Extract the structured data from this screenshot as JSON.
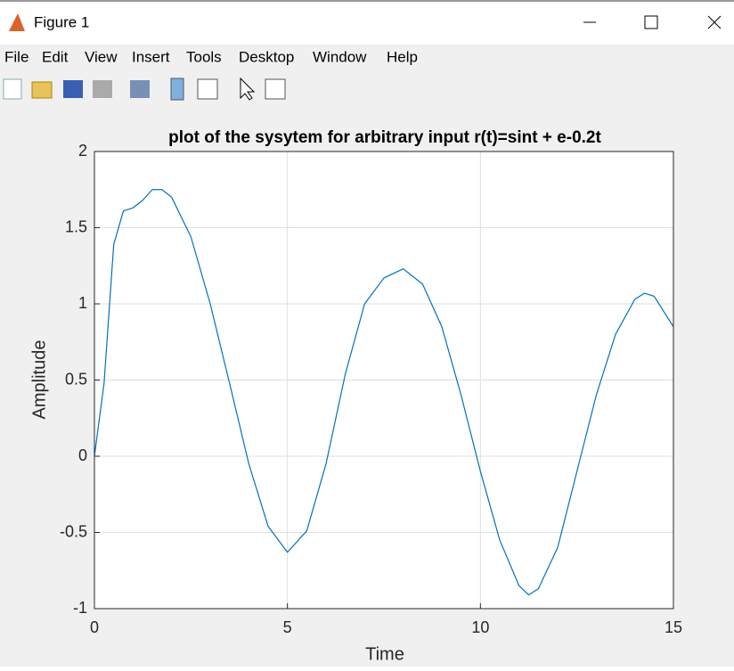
{
  "window": {
    "title": "Figure 1"
  },
  "menu": [
    "File",
    "Edit",
    "View",
    "Insert",
    "Tools",
    "Desktop",
    "Window",
    "Help"
  ],
  "chart_data": {
    "type": "line",
    "title": "plot of the sysytem for arbitrary input r(t)=sint + e-0.2t",
    "x_label": "Time",
    "y_label": "Amplitude",
    "x": [
      0,
      0.25,
      0.5,
      0.75,
      1,
      1.25,
      1.5,
      1.75,
      2,
      2.5,
      3,
      3.5,
      4,
      4.5,
      5,
      5.5,
      6,
      6.5,
      7,
      7.5,
      8,
      8.5,
      9,
      9.5,
      10,
      10.5,
      11,
      11.25,
      11.5,
      12,
      12.5,
      13,
      13.5,
      14,
      14.25,
      14.5,
      15
    ],
    "series": [
      {
        "color": "#0072bd",
        "values": [
          0,
          0.48,
          1.39,
          1.61,
          1.63,
          1.68,
          1.75,
          1.75,
          1.7,
          1.44,
          1.0,
          0.48,
          -0.05,
          -0.46,
          -0.63,
          -0.49,
          -0.05,
          0.54,
          1.0,
          1.17,
          1.23,
          1.13,
          0.85,
          0.4,
          -0.1,
          -0.55,
          -0.85,
          -0.91,
          -0.87,
          -0.6,
          -0.1,
          0.4,
          0.8,
          1.03,
          1.07,
          1.05,
          0.85
        ]
      }
    ],
    "xlim": [
      0,
      15
    ],
    "xticks": [
      0,
      5,
      10,
      15
    ],
    "ylim": [
      -1,
      2
    ],
    "yticks": [
      -1,
      -0.5,
      0,
      0.5,
      1,
      1.5,
      2
    ],
    "grid": true
  }
}
